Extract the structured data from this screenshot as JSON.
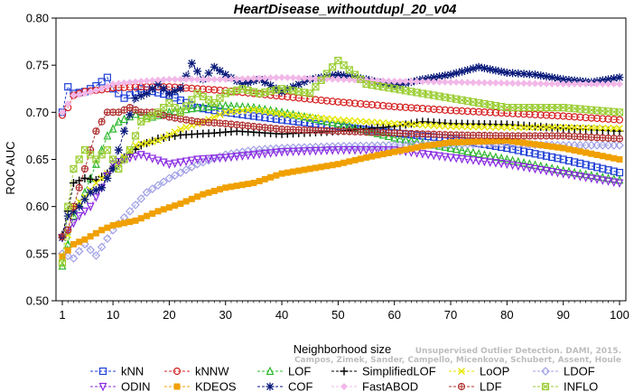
{
  "chart_data": {
    "type": "line",
    "title": "HeartDisease_withoutdupl_20_v04",
    "xlabel": "Neighborhood size",
    "ylabel": "ROC AUC",
    "xlim": [
      1,
      100
    ],
    "ylim": [
      0.5,
      0.8
    ],
    "xticks": [
      "1",
      "10",
      "20",
      "30",
      "40",
      "50",
      "60",
      "70",
      "80",
      "90",
      "100"
    ],
    "yticks": [
      "0.50",
      "0.55",
      "0.60",
      "0.65",
      "0.70",
      "0.75",
      "0.80"
    ],
    "grid": false,
    "legend_position": "bottom",
    "series": [
      {
        "name": "kNN",
        "color": "#1f3fd6",
        "marker": "square",
        "points": [
          [
            1,
            0.7
          ],
          [
            2,
            0.727
          ],
          [
            3,
            0.72
          ],
          [
            5,
            0.722
          ],
          [
            7,
            0.728
          ],
          [
            9,
            0.737
          ],
          [
            10,
            0.725
          ],
          [
            12,
            0.715
          ],
          [
            15,
            0.725
          ],
          [
            20,
            0.718
          ],
          [
            25,
            0.705
          ],
          [
            30,
            0.7
          ],
          [
            40,
            0.692
          ],
          [
            50,
            0.685
          ],
          [
            60,
            0.678
          ],
          [
            70,
            0.672
          ],
          [
            80,
            0.662
          ],
          [
            90,
            0.65
          ],
          [
            100,
            0.636
          ]
        ]
      },
      {
        "name": "kNNW",
        "color": "#d62020",
        "marker": "circle",
        "points": [
          [
            1,
            0.697
          ],
          [
            2,
            0.705
          ],
          [
            3,
            0.718
          ],
          [
            5,
            0.722
          ],
          [
            8,
            0.724
          ],
          [
            10,
            0.726
          ],
          [
            15,
            0.727
          ],
          [
            20,
            0.727
          ],
          [
            25,
            0.725
          ],
          [
            30,
            0.723
          ],
          [
            40,
            0.717
          ],
          [
            50,
            0.711
          ],
          [
            60,
            0.706
          ],
          [
            70,
            0.702
          ],
          [
            80,
            0.699
          ],
          [
            90,
            0.696
          ],
          [
            100,
            0.692
          ]
        ]
      },
      {
        "name": "LOF",
        "color": "#2fb82f",
        "marker": "triangle",
        "points": [
          [
            1,
            0.537
          ],
          [
            2,
            0.56
          ],
          [
            3,
            0.59
          ],
          [
            5,
            0.615
          ],
          [
            7,
            0.645
          ],
          [
            9,
            0.675
          ],
          [
            11,
            0.69
          ],
          [
            14,
            0.698
          ],
          [
            17,
            0.695
          ],
          [
            20,
            0.7
          ],
          [
            25,
            0.705
          ],
          [
            30,
            0.707
          ],
          [
            35,
            0.705
          ],
          [
            40,
            0.7
          ],
          [
            50,
            0.688
          ],
          [
            60,
            0.673
          ],
          [
            70,
            0.662
          ],
          [
            80,
            0.65
          ],
          [
            90,
            0.638
          ],
          [
            100,
            0.628
          ]
        ]
      },
      {
        "name": "SimplifiedLOF",
        "color": "#000000",
        "marker": "plus",
        "points": [
          [
            1,
            0.57
          ],
          [
            2,
            0.595
          ],
          [
            3,
            0.625
          ],
          [
            5,
            0.63
          ],
          [
            7,
            0.628
          ],
          [
            9,
            0.635
          ],
          [
            12,
            0.652
          ],
          [
            15,
            0.665
          ],
          [
            18,
            0.672
          ],
          [
            22,
            0.676
          ],
          [
            28,
            0.678
          ],
          [
            32,
            0.68
          ],
          [
            40,
            0.677
          ],
          [
            50,
            0.68
          ],
          [
            60,
            0.685
          ],
          [
            65,
            0.69
          ],
          [
            70,
            0.688
          ],
          [
            80,
            0.687
          ],
          [
            90,
            0.683
          ],
          [
            100,
            0.68
          ]
        ]
      },
      {
        "name": "LoOP",
        "color": "#e6e600",
        "marker": "x",
        "points": [
          [
            1,
            0.545
          ],
          [
            2,
            0.57
          ],
          [
            3,
            0.6
          ],
          [
            5,
            0.61
          ],
          [
            7,
            0.625
          ],
          [
            10,
            0.64
          ],
          [
            14,
            0.665
          ],
          [
            18,
            0.67
          ],
          [
            22,
            0.682
          ],
          [
            26,
            0.69
          ],
          [
            30,
            0.7
          ],
          [
            35,
            0.703
          ],
          [
            40,
            0.698
          ],
          [
            50,
            0.692
          ],
          [
            60,
            0.688
          ],
          [
            70,
            0.685
          ],
          [
            80,
            0.684
          ],
          [
            90,
            0.684
          ],
          [
            100,
            0.683
          ]
        ]
      },
      {
        "name": "LDOF",
        "color": "#a0a0e6",
        "marker": "diamond",
        "points": [
          [
            1,
            0.55
          ],
          [
            3,
            0.545
          ],
          [
            5,
            0.56
          ],
          [
            7,
            0.548
          ],
          [
            10,
            0.575
          ],
          [
            13,
            0.595
          ],
          [
            16,
            0.615
          ],
          [
            20,
            0.63
          ],
          [
            25,
            0.645
          ],
          [
            30,
            0.655
          ],
          [
            35,
            0.66
          ],
          [
            40,
            0.662
          ],
          [
            50,
            0.664
          ],
          [
            60,
            0.665
          ],
          [
            70,
            0.666
          ],
          [
            80,
            0.666
          ],
          [
            90,
            0.665
          ],
          [
            100,
            0.665
          ]
        ]
      },
      {
        "name": "ODIN",
        "color": "#8a2be2",
        "marker": "triangle-down",
        "points": [
          [
            1,
            0.567
          ],
          [
            2,
            0.575
          ],
          [
            4,
            0.59
          ],
          [
            6,
            0.6
          ],
          [
            8,
            0.62
          ],
          [
            10,
            0.645
          ],
          [
            12,
            0.65
          ],
          [
            15,
            0.655
          ],
          [
            20,
            0.645
          ],
          [
            25,
            0.65
          ],
          [
            30,
            0.652
          ],
          [
            40,
            0.658
          ],
          [
            50,
            0.66
          ],
          [
            60,
            0.66
          ],
          [
            70,
            0.652
          ],
          [
            80,
            0.645
          ],
          [
            90,
            0.635
          ],
          [
            100,
            0.625
          ]
        ]
      },
      {
        "name": "KDEOS",
        "color": "#f0a000",
        "marker": "square-filled",
        "points": [
          [
            1,
            0.547
          ],
          [
            3,
            0.56
          ],
          [
            5,
            0.565
          ],
          [
            8,
            0.575
          ],
          [
            10,
            0.58
          ],
          [
            14,
            0.585
          ],
          [
            18,
            0.595
          ],
          [
            22,
            0.603
          ],
          [
            26,
            0.613
          ],
          [
            30,
            0.62
          ],
          [
            35,
            0.625
          ],
          [
            40,
            0.635
          ],
          [
            45,
            0.64
          ],
          [
            50,
            0.645
          ],
          [
            55,
            0.652
          ],
          [
            60,
            0.658
          ],
          [
            65,
            0.664
          ],
          [
            70,
            0.668
          ],
          [
            80,
            0.67
          ],
          [
            90,
            0.662
          ],
          [
            100,
            0.65
          ]
        ]
      },
      {
        "name": "COF",
        "color": "#0a1a7a",
        "marker": "star",
        "points": [
          [
            1,
            0.567
          ],
          [
            2,
            0.59
          ],
          [
            4,
            0.6
          ],
          [
            6,
            0.615
          ],
          [
            8,
            0.62
          ],
          [
            10,
            0.64
          ],
          [
            12,
            0.68
          ],
          [
            14,
            0.715
          ],
          [
            16,
            0.72
          ],
          [
            18,
            0.73
          ],
          [
            20,
            0.72
          ],
          [
            22,
            0.725
          ],
          [
            24,
            0.752
          ],
          [
            26,
            0.735
          ],
          [
            28,
            0.748
          ],
          [
            30,
            0.74
          ],
          [
            33,
            0.73
          ],
          [
            36,
            0.735
          ],
          [
            40,
            0.722
          ],
          [
            45,
            0.735
          ],
          [
            50,
            0.74
          ],
          [
            55,
            0.735
          ],
          [
            60,
            0.728
          ],
          [
            65,
            0.735
          ],
          [
            70,
            0.74
          ],
          [
            75,
            0.748
          ],
          [
            80,
            0.742
          ],
          [
            85,
            0.74
          ],
          [
            90,
            0.735
          ],
          [
            95,
            0.732
          ],
          [
            100,
            0.737
          ]
        ]
      },
      {
        "name": "FastABOD",
        "color": "#f2b8e8",
        "marker": "diamond-filled",
        "points": [
          [
            1,
            0.7
          ],
          [
            3,
            0.718
          ],
          [
            5,
            0.72
          ],
          [
            8,
            0.725
          ],
          [
            10,
            0.73
          ],
          [
            15,
            0.733
          ],
          [
            20,
            0.735
          ],
          [
            30,
            0.735
          ],
          [
            40,
            0.737
          ],
          [
            50,
            0.735
          ],
          [
            60,
            0.733
          ],
          [
            70,
            0.732
          ],
          [
            80,
            0.731
          ],
          [
            90,
            0.73
          ],
          [
            100,
            0.73
          ]
        ]
      },
      {
        "name": "LDF",
        "color": "#b03030",
        "marker": "circle-plus",
        "points": [
          [
            1,
            0.568
          ],
          [
            2,
            0.575
          ],
          [
            3,
            0.6
          ],
          [
            5,
            0.64
          ],
          [
            7,
            0.68
          ],
          [
            9,
            0.7
          ],
          [
            11,
            0.7
          ],
          [
            13,
            0.705
          ],
          [
            15,
            0.7
          ],
          [
            17,
            0.7
          ],
          [
            20,
            0.695
          ],
          [
            25,
            0.69
          ],
          [
            30,
            0.688
          ],
          [
            40,
            0.682
          ],
          [
            50,
            0.68
          ],
          [
            60,
            0.678
          ],
          [
            70,
            0.676
          ],
          [
            80,
            0.675
          ],
          [
            90,
            0.675
          ],
          [
            100,
            0.672
          ]
        ]
      },
      {
        "name": "INFLO",
        "color": "#9acd32",
        "marker": "square-x",
        "points": [
          [
            1,
            0.54
          ],
          [
            2,
            0.6
          ],
          [
            3,
            0.64
          ],
          [
            5,
            0.66
          ],
          [
            7,
            0.65
          ],
          [
            9,
            0.66
          ],
          [
            11,
            0.64
          ],
          [
            13,
            0.66
          ],
          [
            15,
            0.69
          ],
          [
            18,
            0.7
          ],
          [
            20,
            0.71
          ],
          [
            22,
            0.7
          ],
          [
            25,
            0.72
          ],
          [
            28,
            0.71
          ],
          [
            30,
            0.72
          ],
          [
            33,
            0.725
          ],
          [
            36,
            0.72
          ],
          [
            40,
            0.725
          ],
          [
            45,
            0.72
          ],
          [
            50,
            0.755
          ],
          [
            55,
            0.73
          ],
          [
            60,
            0.725
          ],
          [
            65,
            0.72
          ],
          [
            70,
            0.715
          ],
          [
            80,
            0.705
          ],
          [
            90,
            0.705
          ],
          [
            100,
            0.7
          ]
        ]
      }
    ]
  },
  "watermark": {
    "line1": "Unsupervised Outlier Detection. DAMI, 2015.",
    "line2": "Campos, Zimek, Sander, Campello, Micenkova, Schubert, Assent, Houle"
  }
}
